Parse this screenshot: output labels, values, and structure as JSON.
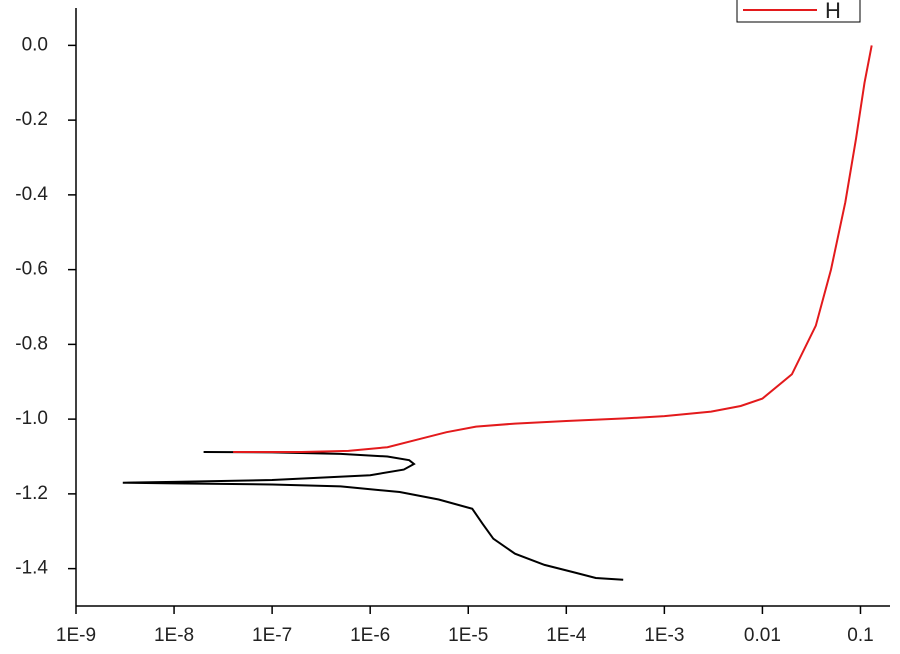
{
  "chart_data": {
    "type": "line",
    "xscale": "log",
    "xlim": [
      1e-09,
      0.2
    ],
    "ylim": [
      -1.5,
      0.1
    ],
    "xticks": [
      {
        "value": 1e-09,
        "label": "1E-9"
      },
      {
        "value": 1e-08,
        "label": "1E-8"
      },
      {
        "value": 1e-07,
        "label": "1E-7"
      },
      {
        "value": 1e-06,
        "label": "1E-6"
      },
      {
        "value": 1e-05,
        "label": "1E-5"
      },
      {
        "value": 0.0001,
        "label": "1E-4"
      },
      {
        "value": 0.001,
        "label": "1E-3"
      },
      0.01,
      0.1
    ],
    "yticks": [
      {
        "value": 0,
        "label": "0.0"
      },
      -0.2,
      -0.4,
      -0.6,
      -0.8,
      {
        "value": -1,
        "label": "-1.0"
      },
      -1.2,
      -1.4
    ],
    "legend": "upper right",
    "series": [
      {
        "color": "#000000",
        "x": [
          2e-08,
          1e-07,
          5e-07,
          1.5e-06,
          2.5e-06,
          2.8e-06,
          2.2e-06,
          1e-06,
          1e-07,
          1e-08,
          3e-09,
          1e-08,
          1e-07,
          5e-07,
          2e-06,
          5e-06,
          1.1e-05,
          1.4e-05,
          1.8e-05,
          3e-05,
          6e-05,
          0.00012,
          0.0002,
          0.00038
        ],
        "values": [
          -1.088,
          -1.089,
          -1.093,
          -1.1,
          -1.11,
          -1.12,
          -1.135,
          -1.15,
          -1.163,
          -1.168,
          -1.17,
          -1.172,
          -1.175,
          -1.18,
          -1.195,
          -1.215,
          -1.24,
          -1.28,
          -1.32,
          -1.36,
          -1.39,
          -1.41,
          -1.425,
          -1.43
        ]
      },
      {
        "name": "H",
        "color": "#e31a1c",
        "x": [
          4e-08,
          2e-07,
          6e-07,
          1.5e-06,
          3e-06,
          6e-06,
          1.2e-05,
          3e-05,
          0.0001,
          0.0004,
          0.001,
          0.003,
          0.006,
          0.01,
          0.02,
          0.035,
          0.05,
          0.07,
          0.09,
          0.11,
          0.13
        ],
        "values": [
          -1.088,
          -1.088,
          -1.085,
          -1.075,
          -1.055,
          -1.035,
          -1.02,
          -1.012,
          -1.005,
          -0.998,
          -0.992,
          -0.98,
          -0.965,
          -0.945,
          -0.88,
          -0.75,
          -0.6,
          -0.42,
          -0.25,
          -0.1,
          0.0
        ]
      }
    ]
  }
}
